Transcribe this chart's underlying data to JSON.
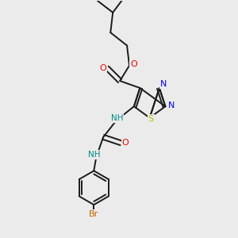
{
  "background_color": "#ebebeb",
  "bond_color": "#1a1a1a",
  "atoms": {
    "S": {
      "color": "#b8b800"
    },
    "N": {
      "color": "#0000ee"
    },
    "O": {
      "color": "#ee0000"
    },
    "Br": {
      "color": "#cc6600"
    },
    "NH": {
      "color": "#008888"
    }
  },
  "figsize": [
    3.0,
    3.0
  ],
  "dpi": 100
}
